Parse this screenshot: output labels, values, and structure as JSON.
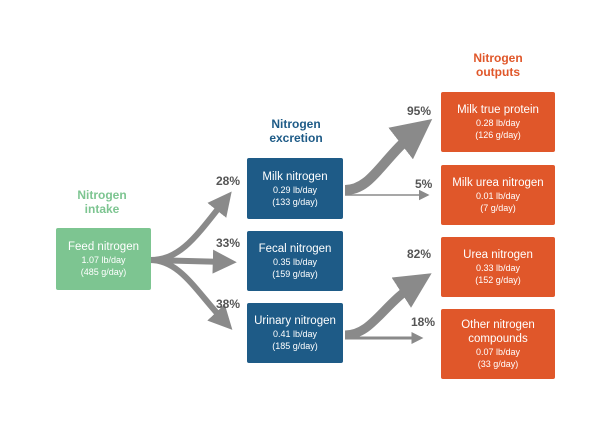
{
  "headings": {
    "intake": "Nitrogen\nintake",
    "excretion": "Nitrogen\nexcretion",
    "outputs": "Nitrogen\noutputs"
  },
  "colors": {
    "intake": "#7dc591",
    "excretion": "#1e5b87",
    "outputs": "#e0572a",
    "arrow": "#8a8a8a"
  },
  "intake": {
    "title": "Feed nitrogen",
    "lb": "1.07 lb/day",
    "g": "(485 g/day)"
  },
  "excretion": [
    {
      "title": "Milk nitrogen",
      "lb": "0.29 lb/day",
      "g": "(133 g/day)",
      "pct": "28%"
    },
    {
      "title": "Fecal nitrogen",
      "lb": "0.35 lb/day",
      "g": "(159 g/day)",
      "pct": "33%"
    },
    {
      "title": "Urinary nitrogen",
      "lb": "0.41 lb/day",
      "g": "(185 g/day)",
      "pct": "38%"
    }
  ],
  "outputs": [
    {
      "title": "Milk true protein",
      "lb": "0.28 lb/day",
      "g": "(126 g/day)",
      "pct": "95%"
    },
    {
      "title": "Milk urea nitrogen",
      "lb": "0.01 lb/day",
      "g": "(7 g/day)",
      "pct": "5%"
    },
    {
      "title": "Urea nitrogen",
      "lb": "0.33 lb/day",
      "g": "(152 g/day)",
      "pct": "82%"
    },
    {
      "title": "Other nitrogen\ncompounds",
      "lb": "0.07 lb/day",
      "g": "(33 g/day)",
      "pct": "18%"
    }
  ]
}
